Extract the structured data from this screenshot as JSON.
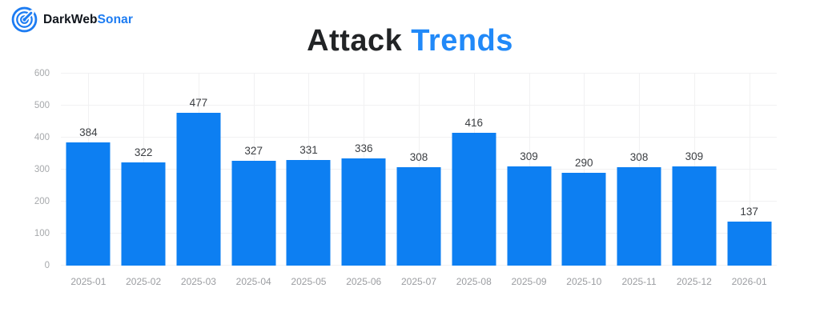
{
  "brand": {
    "name_dark": "DarkWeb",
    "name_accent": "Sonar"
  },
  "title": {
    "part1": "Attack",
    "part2": "Trends"
  },
  "colors": {
    "bar": "#0d7ff2",
    "title_accent": "#2189f8",
    "logo_accent": "#1d7cf2",
    "grid": "#f1f1f2",
    "axis_label": "#9b9da1",
    "value_label": "#3b3e42"
  },
  "chart_data": {
    "type": "bar",
    "title": "Attack Trends",
    "categories": [
      "2025-01",
      "2025-02",
      "2025-03",
      "2025-04",
      "2025-05",
      "2025-06",
      "2025-07",
      "2025-08",
      "2025-09",
      "2025-10",
      "2025-11",
      "2025-12",
      "2026-01"
    ],
    "values": [
      384,
      322,
      477,
      327,
      331,
      336,
      308,
      416,
      309,
      290,
      308,
      309,
      137
    ],
    "xlabel": "",
    "ylabel": "",
    "ylim": [
      0,
      600
    ],
    "yticks": [
      0,
      100,
      200,
      300,
      400,
      500,
      600
    ],
    "grid": true,
    "legend": false,
    "value_labels": true,
    "bar_color": "#0d7ff2"
  }
}
